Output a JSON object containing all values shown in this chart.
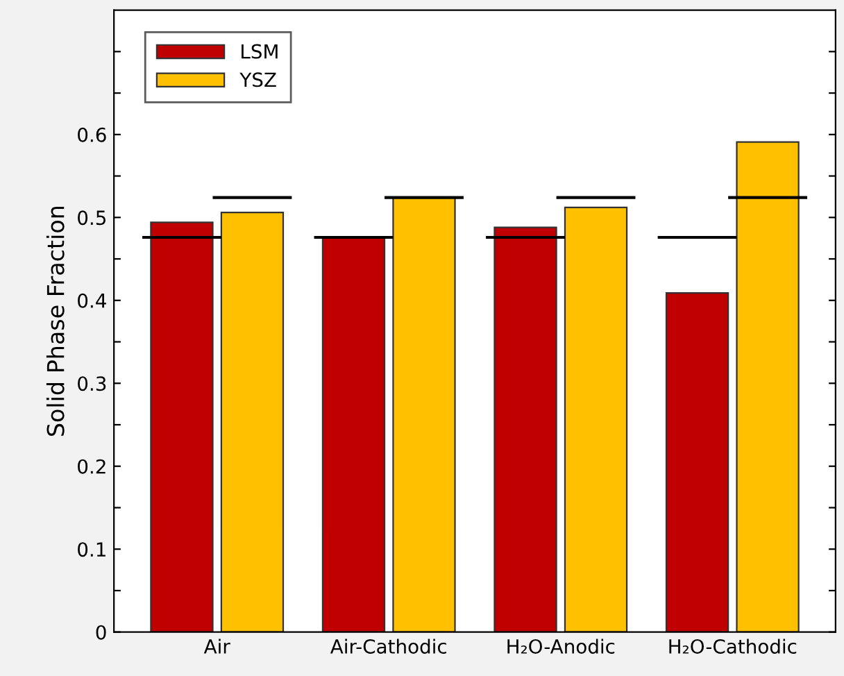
{
  "chart_data": {
    "type": "bar",
    "ylabel": "Solid Phase Fraction",
    "categories": [
      "Air",
      "Air-Cathodic",
      "H₂O-Anodic",
      "H₂O-Cathodic"
    ],
    "series": [
      {
        "name": "LSM",
        "color": "#c00000",
        "values": [
          0.494,
          0.476,
          0.488,
          0.409
        ]
      },
      {
        "name": "YSZ",
        "color": "#ffc000",
        "values": [
          0.506,
          0.524,
          0.512,
          0.591
        ]
      }
    ],
    "ref_lines": [
      {
        "axis": "y",
        "value": 0.476,
        "color": "#000000"
      },
      {
        "axis": "y",
        "value": 0.524,
        "color": "#000000"
      }
    ],
    "ylim": [
      0,
      0.75
    ],
    "yticks": [
      0,
      {
        "value": 0.05,
        "label": null
      },
      0.1,
      {
        "value": 0.15,
        "label": null
      },
      0.2,
      {
        "value": 0.25,
        "label": null
      },
      0.3,
      {
        "value": 0.35,
        "label": null
      },
      0.4,
      {
        "value": 0.45,
        "label": null
      },
      0.5,
      {
        "value": 0.55,
        "label": null
      },
      0.6,
      {
        "value": 0.65,
        "label": null
      },
      {
        "value": 0.7,
        "label": null
      }
    ],
    "legend": "top left",
    "grid": false
  }
}
